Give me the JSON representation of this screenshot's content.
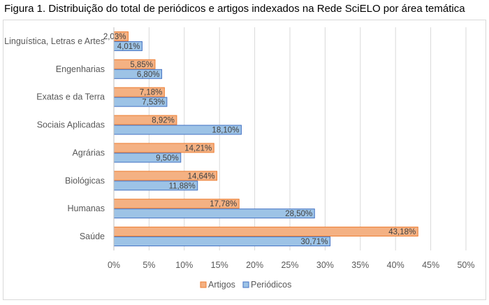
{
  "title": "Figura 1. Distribuição do total de periódicos e artigos indexados na Rede SciELO por área temática",
  "colors": {
    "artigos": "#F4B183",
    "artigos_border": "#ED7D31",
    "periodicos": "#9DC3E6",
    "periodicos_border": "#4472C4",
    "grid": "#d9d9d9"
  },
  "chart_data": {
    "type": "bar",
    "orientation": "horizontal",
    "categories": [
      "Linguística, Letras e Artes",
      "Engenharias",
      "Exatas e da Terra",
      "Sociais Aplicadas",
      "Agrárias",
      "Biológicas",
      "Humanas",
      "Saúde"
    ],
    "series": [
      {
        "name": "Artigos",
        "values": [
          2.03,
          5.85,
          7.18,
          8.92,
          14.21,
          14.64,
          17.78,
          43.18
        ],
        "labels": [
          "2,03%",
          "5,85%",
          "7,18%",
          "8,92%",
          "14,21%",
          "14,64%",
          "17,78%",
          "43,18%"
        ]
      },
      {
        "name": "Periódicos",
        "values": [
          4.01,
          6.8,
          7.53,
          18.1,
          9.5,
          11.88,
          28.5,
          30.71
        ],
        "labels": [
          "4,01%",
          "6,80%",
          "7,53%",
          "18,10%",
          "9,50%",
          "11,88%",
          "28,50%",
          "30,71%"
        ]
      }
    ],
    "xlim": [
      0,
      50
    ],
    "xticks": [
      "0%",
      "5%",
      "10%",
      "15%",
      "20%",
      "25%",
      "30%",
      "35%",
      "40%",
      "45%",
      "50%"
    ],
    "grid": true,
    "legend": "bottom"
  }
}
